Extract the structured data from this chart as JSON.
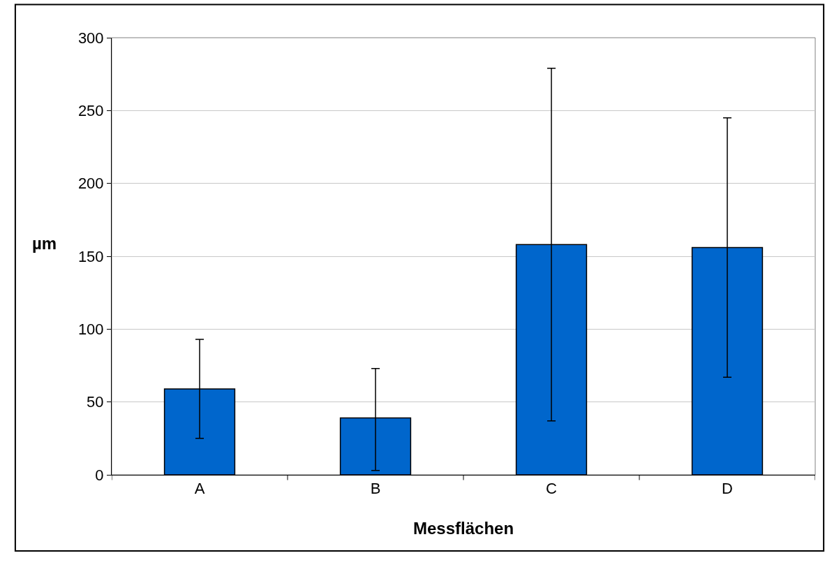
{
  "chart_data": {
    "type": "bar",
    "xlabel": "Messflächen",
    "ylabel": "µm",
    "categories": [
      "A",
      "B",
      "C",
      "D"
    ],
    "values": [
      59,
      39,
      158,
      156
    ],
    "errors": [
      [
        25,
        93
      ],
      [
        3,
        73
      ],
      [
        37,
        279
      ],
      [
        67,
        245
      ]
    ],
    "color": "#0066cc",
    "ylim": [
      0,
      300
    ],
    "yticks": [
      0,
      50,
      100,
      150,
      200,
      250,
      300
    ],
    "grid": "y",
    "legend": false
  }
}
